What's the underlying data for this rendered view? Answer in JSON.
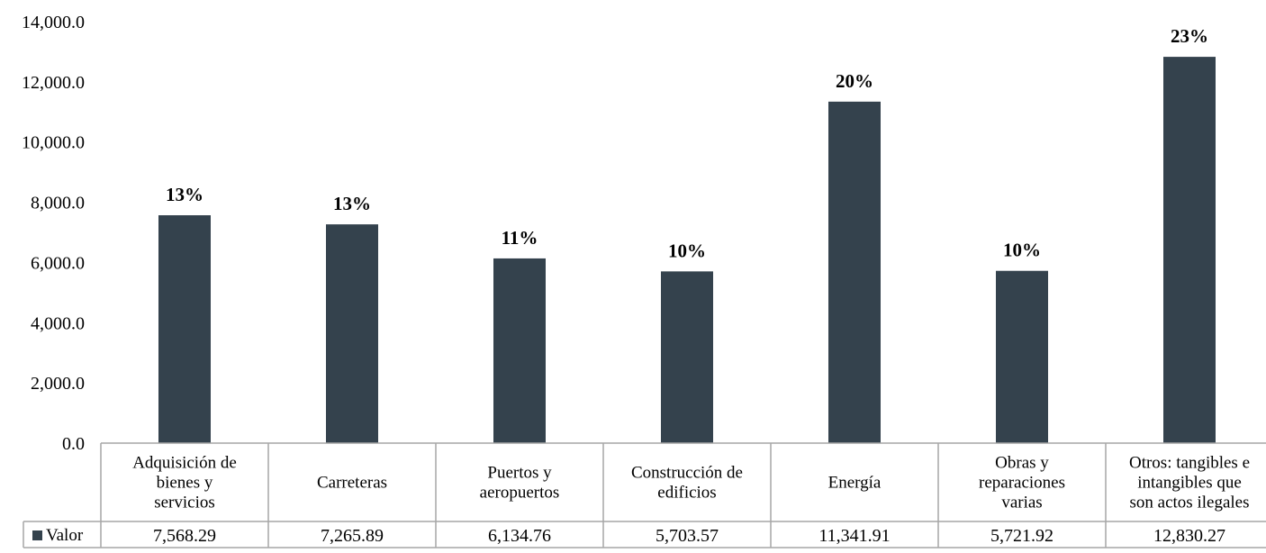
{
  "chart_data": {
    "type": "bar",
    "title": "",
    "xlabel": "",
    "ylabel": "",
    "ylim": [
      0,
      14000
    ],
    "yticks": [
      "0.0",
      "2,000.0",
      "4,000.0",
      "6,000.0",
      "8,000.0",
      "10,000.0",
      "12,000.0",
      "14,000.0"
    ],
    "categories": [
      [
        "Adquisición de",
        "bienes y",
        "servicios"
      ],
      [
        "Carreteras"
      ],
      [
        "Puertos y",
        "aeropuertos"
      ],
      [
        "Construcción de",
        "edificios"
      ],
      [
        "Energía"
      ],
      [
        "Obras y",
        "reparaciones",
        "varias"
      ],
      [
        "Otros: tangibles e",
        "intangibles que",
        "son actos ilegales"
      ]
    ],
    "series": [
      {
        "name": "Valor",
        "values": [
          7568.29,
          7265.89,
          6134.76,
          5703.57,
          11341.91,
          5721.92,
          12830.27
        ],
        "value_labels": [
          "7,568.29",
          "7,265.89",
          "6,134.76",
          "5,703.57",
          "11,341.91",
          "5,721.92",
          "12,830.27"
        ],
        "data_labels": [
          "13%",
          "13%",
          "11%",
          "10%",
          "20%",
          "10%",
          "23%"
        ],
        "color": "#34424d"
      }
    ],
    "grid": false,
    "legend": "data-table-left"
  }
}
